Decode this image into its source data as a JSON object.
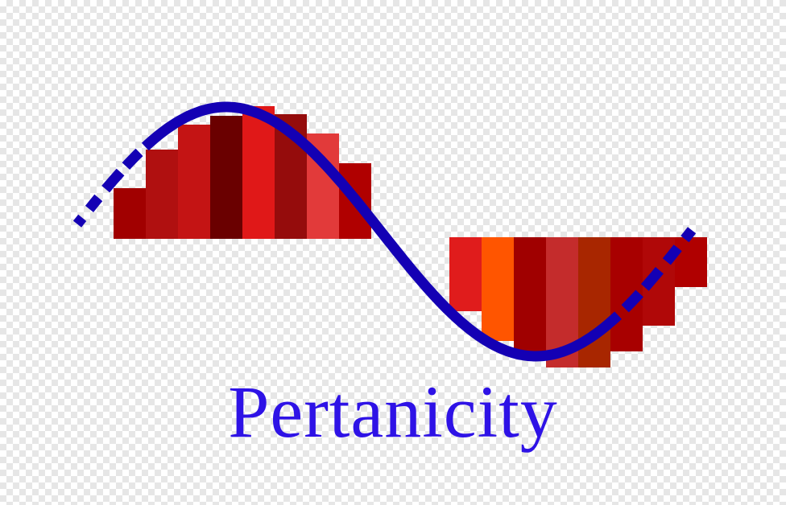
{
  "brand": {
    "name": "Pertanicity",
    "text_color": "#2e12e6",
    "wave_color": "#1400b4"
  },
  "logo": {
    "upper_bars": [
      {
        "color": "#a10000"
      },
      {
        "color": "#b01010"
      },
      {
        "color": "#c41414"
      },
      {
        "color": "#6a0000"
      },
      {
        "color": "#e01818"
      },
      {
        "color": "#950c0c"
      },
      {
        "color": "#e23a3a"
      },
      {
        "color": "#b00000"
      }
    ],
    "lower_bars": [
      {
        "color": "#e01c1c"
      },
      {
        "color": "#ff5500"
      },
      {
        "color": "#a00000"
      },
      {
        "color": "#c42c2c"
      },
      {
        "color": "#a82600"
      },
      {
        "color": "#a80000"
      },
      {
        "color": "#b00808"
      },
      {
        "color": "#b00000"
      }
    ]
  }
}
